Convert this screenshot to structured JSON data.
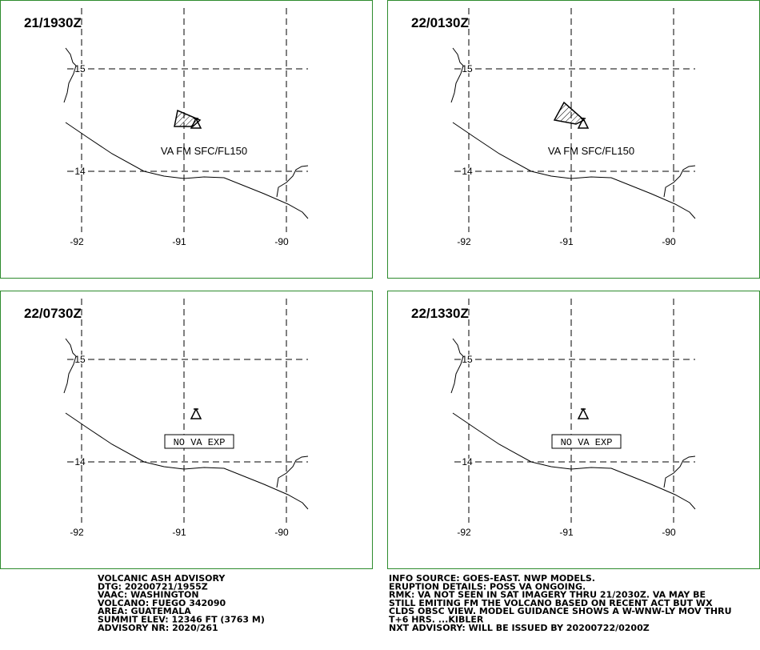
{
  "panels": [
    {
      "time": "21/1930Z",
      "annotation": "VA FM SFC/FL150"
    },
    {
      "time": "22/0130Z",
      "annotation": "VA FM SFC/FL150"
    },
    {
      "time": "22/0730Z",
      "annotation": "NO VA EXP"
    },
    {
      "time": "22/1330Z",
      "annotation": "NO VA EXP"
    }
  ],
  "lat_ticks": [
    15,
    14
  ],
  "lon_ticks": [
    -92,
    -91,
    -90
  ],
  "advisory_left": [
    "VOLCANIC ASH ADVISORY",
    "DTG: 20200721/1955Z",
    "VAAC: WASHINGTON",
    "VOLCANO: FUEGO 342090",
    "AREA: GUATEMALA",
    "SUMMIT ELEV: 12346 FT (3763 M)",
    "ADVISORY NR: 2020/261"
  ],
  "advisory_right": [
    "INFO SOURCE: GOES-EAST. NWP MODELS.",
    "ERUPTION DETAILS: POSS VA ONGOING.",
    "RMK: VA NOT SEEN IN SAT IMAGERY THRU 21/2030Z. VA MAY BE",
    "STILL EMITING FM THE VOLCANO BASED ON RECENT ACT BUT WX",
    "CLDS OBSC VIEW. MODEL GUIDANCE SHOWS A W-WNW-LY MOV THRU",
    "T+6 HRS. ...KIBLER",
    "NXT ADVISORY: WILL BE ISSUED BY 20200722/0200Z"
  ]
}
